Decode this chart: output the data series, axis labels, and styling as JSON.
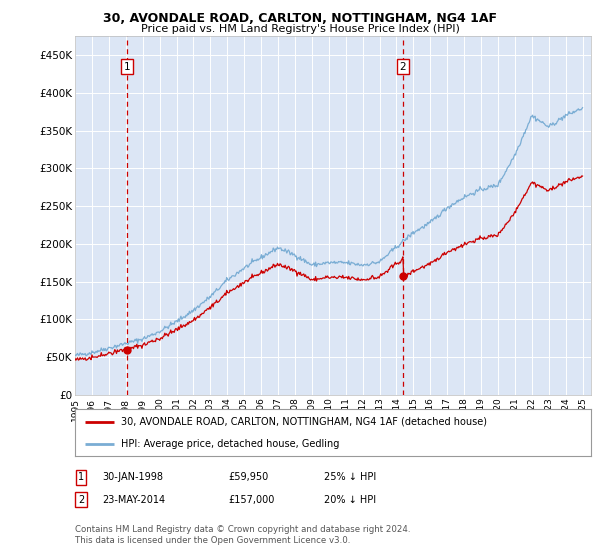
{
  "title": "30, AVONDALE ROAD, CARLTON, NOTTINGHAM, NG4 1AF",
  "subtitle": "Price paid vs. HM Land Registry's House Price Index (HPI)",
  "background_color": "#dce6f5",
  "hpi_color": "#7aadd4",
  "price_color": "#cc0000",
  "ylim": [
    0,
    475000
  ],
  "yticks": [
    0,
    50000,
    100000,
    150000,
    200000,
    250000,
    300000,
    350000,
    400000,
    450000
  ],
  "ytick_labels": [
    "£0",
    "£50K",
    "£100K",
    "£150K",
    "£200K",
    "£250K",
    "£300K",
    "£350K",
    "£400K",
    "£450K"
  ],
  "xlim_start": 1995.3,
  "xlim_end": 2025.5,
  "xtick_years": [
    1995,
    1996,
    1997,
    1998,
    1999,
    2000,
    2001,
    2002,
    2003,
    2004,
    2005,
    2006,
    2007,
    2008,
    2009,
    2010,
    2011,
    2012,
    2013,
    2014,
    2015,
    2016,
    2017,
    2018,
    2019,
    2020,
    2021,
    2022,
    2023,
    2024,
    2025
  ],
  "sale1_x": 1998.08,
  "sale1_y": 59950,
  "sale1_label": "1",
  "sale1_date": "30-JAN-1998",
  "sale1_price": "£59,950",
  "sale1_hpi": "25% ↓ HPI",
  "sale2_x": 2014.39,
  "sale2_y": 157000,
  "sale2_label": "2",
  "sale2_date": "23-MAY-2014",
  "sale2_price": "£157,000",
  "sale2_hpi": "20% ↓ HPI",
  "legend_line1": "30, AVONDALE ROAD, CARLTON, NOTTINGHAM, NG4 1AF (detached house)",
  "legend_line2": "HPI: Average price, detached house, Gedling",
  "footer": "Contains HM Land Registry data © Crown copyright and database right 2024.\nThis data is licensed under the Open Government Licence v3.0.",
  "hpi_anchors_years": [
    1995,
    1996,
    1997,
    1998,
    1999,
    2000,
    2001,
    2002,
    2003,
    2004,
    2005,
    2006,
    2007,
    2008,
    2009,
    2010,
    2011,
    2012,
    2013,
    2014,
    2015,
    2016,
    2017,
    2018,
    2019,
    2020,
    2021,
    2022,
    2023,
    2024,
    2025
  ],
  "hpi_anchors_vals": [
    52000,
    56000,
    62000,
    68000,
    74000,
    84000,
    97000,
    112000,
    130000,
    152000,
    168000,
    182000,
    195000,
    185000,
    172000,
    175000,
    175000,
    172000,
    176000,
    196000,
    215000,
    228000,
    248000,
    262000,
    272000,
    278000,
    318000,
    370000,
    355000,
    370000,
    380000
  ]
}
